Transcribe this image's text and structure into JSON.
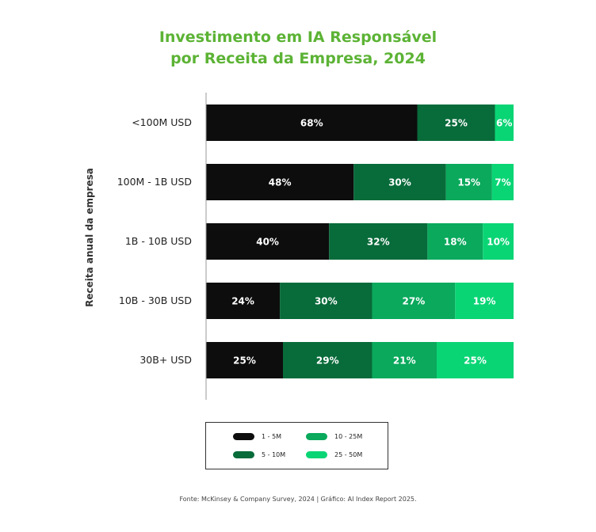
{
  "chart_data": {
    "type": "bar",
    "orientation": "horizontal",
    "stacked": true,
    "title": "Investimento em IA Responsável por Receita da Empresa, 2024",
    "title_lines": [
      "Investimento em IA Responsável",
      "por Receita da Empresa, 2024"
    ],
    "ylabel": "Receita anual da empresa",
    "xlabel": "",
    "xlim": [
      0,
      100
    ],
    "categories": [
      "<100M USD",
      "100M - 1B USD",
      "1B - 10B USD",
      "10B - 30B USD",
      "30B+ USD"
    ],
    "series": [
      {
        "name": "1 - 5M",
        "color": "#0d0d0d",
        "label_color": "#ffffff",
        "values": [
          68,
          48,
          40,
          24,
          25
        ]
      },
      {
        "name": "5 - 10M",
        "color": "#086b3a",
        "label_color": "#ffffff",
        "values": [
          25,
          30,
          32,
          30,
          29
        ]
      },
      {
        "name": "10 - 25M",
        "color": "#0aa95c",
        "label_color": "#ffffff",
        "values": [
          0,
          15,
          18,
          27,
          21
        ]
      },
      {
        "name": "25 - 50M",
        "color": "#0ad575",
        "label_color": "#ffffff",
        "values": [
          6,
          7,
          10,
          19,
          25
        ]
      }
    ],
    "legend_position": "bottom",
    "grid": false
  },
  "legend_order": [
    0,
    1,
    2,
    3
  ],
  "source": "Fonte: McKinsey & Company Survey, 2024 | Gráfico: AI Index Report 2025."
}
